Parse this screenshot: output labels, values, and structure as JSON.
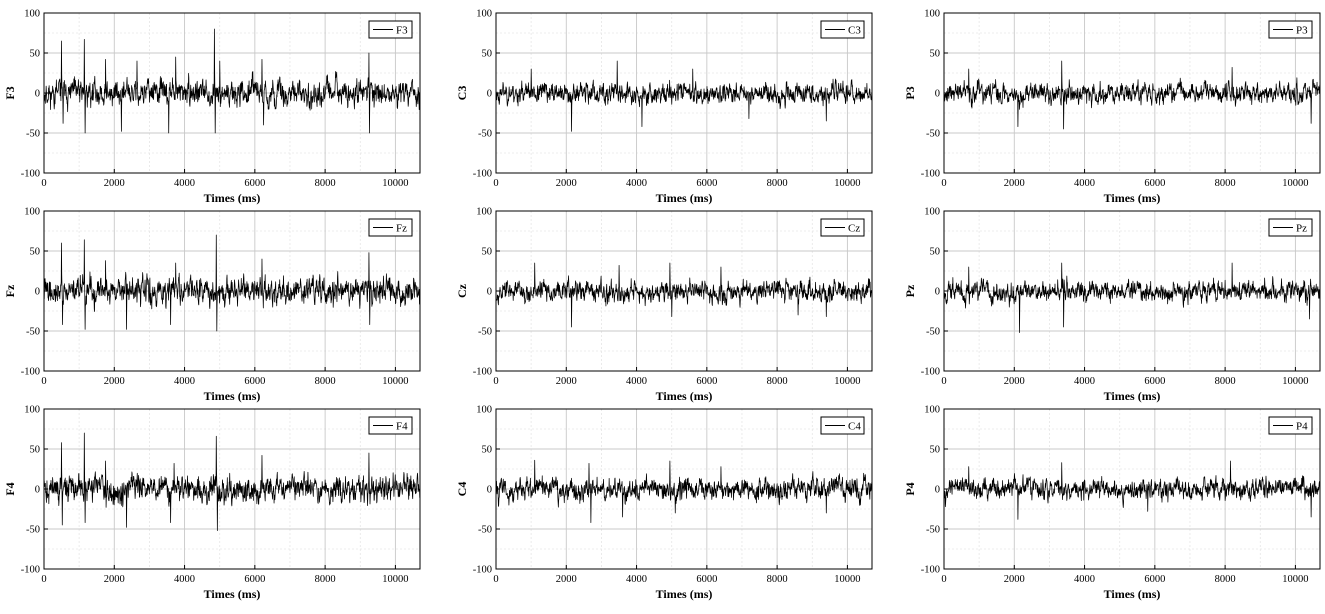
{
  "chart_data": [
    {
      "type": "line",
      "ylabel": "F3",
      "legend": "F3",
      "xlabel": "Times (ms)",
      "xlim": [
        0,
        10700
      ],
      "ylim": [
        -100,
        100
      ],
      "xticks": [
        0,
        2000,
        4000,
        6000,
        8000,
        10000
      ],
      "yticks": [
        -100,
        -50,
        0,
        50,
        100
      ],
      "legend_position": "top-right",
      "grid": true,
      "signal": {
        "amplitude": 13,
        "seed": 11,
        "spikes": [
          [
            500,
            65
          ],
          [
            540,
            -38
          ],
          [
            1150,
            67
          ],
          [
            1170,
            -50
          ],
          [
            1750,
            42
          ],
          [
            2200,
            -48
          ],
          [
            2650,
            40
          ],
          [
            3550,
            -50
          ],
          [
            3750,
            45
          ],
          [
            4850,
            80
          ],
          [
            4870,
            -50
          ],
          [
            5000,
            40
          ],
          [
            6200,
            42
          ],
          [
            6250,
            -40
          ],
          [
            9250,
            50
          ],
          [
            9260,
            -50
          ]
        ]
      }
    },
    {
      "type": "line",
      "ylabel": "C3",
      "legend": "C3",
      "xlabel": "Times (ms)",
      "xlim": [
        0,
        10700
      ],
      "ylim": [
        -100,
        100
      ],
      "xticks": [
        0,
        2000,
        4000,
        6000,
        8000,
        10000
      ],
      "yticks": [
        -100,
        -50,
        0,
        50,
        100
      ],
      "legend_position": "top-right",
      "grid": true,
      "signal": {
        "amplitude": 10,
        "seed": 23,
        "spikes": [
          [
            2150,
            -48
          ],
          [
            3450,
            40
          ],
          [
            4150,
            -42
          ],
          [
            1000,
            30
          ],
          [
            5600,
            30
          ],
          [
            7200,
            -32
          ],
          [
            9400,
            -35
          ]
        ]
      }
    },
    {
      "type": "line",
      "ylabel": "P3",
      "legend": "P3",
      "xlabel": "Times (ms)",
      "xlim": [
        0,
        10700
      ],
      "ylim": [
        -100,
        100
      ],
      "xticks": [
        0,
        2000,
        4000,
        6000,
        8000,
        10000
      ],
      "yticks": [
        -100,
        -50,
        0,
        50,
        100
      ],
      "legend_position": "top-right",
      "grid": true,
      "signal": {
        "amplitude": 10,
        "seed": 37,
        "spikes": [
          [
            2100,
            -42
          ],
          [
            3350,
            40
          ],
          [
            3400,
            -45
          ],
          [
            8200,
            32
          ],
          [
            10450,
            -38
          ],
          [
            700,
            30
          ]
        ]
      }
    },
    {
      "type": "line",
      "ylabel": "Fz",
      "legend": "Fz",
      "xlabel": "Times (ms)",
      "xlim": [
        0,
        10700
      ],
      "ylim": [
        -100,
        100
      ],
      "xticks": [
        0,
        2000,
        4000,
        6000,
        8000,
        10000
      ],
      "yticks": [
        -100,
        -50,
        0,
        50,
        100
      ],
      "legend_position": "top-right",
      "grid": true,
      "signal": {
        "amplitude": 13,
        "seed": 41,
        "spikes": [
          [
            500,
            60
          ],
          [
            530,
            -42
          ],
          [
            1150,
            64
          ],
          [
            1170,
            -48
          ],
          [
            1750,
            38
          ],
          [
            2350,
            -48
          ],
          [
            3750,
            35
          ],
          [
            3600,
            -42
          ],
          [
            4900,
            70
          ],
          [
            4920,
            -50
          ],
          [
            6200,
            40
          ],
          [
            9250,
            48
          ],
          [
            9270,
            -42
          ]
        ]
      }
    },
    {
      "type": "line",
      "ylabel": "Cz",
      "legend": "Cz",
      "xlabel": "Times (ms)",
      "xlim": [
        0,
        10700
      ],
      "ylim": [
        -100,
        100
      ],
      "xticks": [
        0,
        2000,
        4000,
        6000,
        8000,
        10000
      ],
      "yticks": [
        -100,
        -50,
        0,
        50,
        100
      ],
      "legend_position": "top-right",
      "grid": true,
      "signal": {
        "amplitude": 10,
        "seed": 53,
        "spikes": [
          [
            2150,
            -45
          ],
          [
            1100,
            35
          ],
          [
            3500,
            32
          ],
          [
            4950,
            35
          ],
          [
            5000,
            -32
          ],
          [
            6400,
            30
          ],
          [
            8600,
            -30
          ],
          [
            9400,
            -32
          ]
        ]
      }
    },
    {
      "type": "line",
      "ylabel": "Pz",
      "legend": "Pz",
      "xlabel": "Times (ms)",
      "xlim": [
        0,
        10700
      ],
      "ylim": [
        -100,
        100
      ],
      "xticks": [
        0,
        2000,
        4000,
        6000,
        8000,
        10000
      ],
      "yticks": [
        -100,
        -50,
        0,
        50,
        100
      ],
      "legend_position": "top-right",
      "grid": true,
      "signal": {
        "amplitude": 10,
        "seed": 67,
        "spikes": [
          [
            2150,
            -52
          ],
          [
            3350,
            35
          ],
          [
            3400,
            -45
          ],
          [
            8200,
            35
          ],
          [
            10400,
            -35
          ],
          [
            700,
            30
          ]
        ]
      }
    },
    {
      "type": "line",
      "ylabel": "F4",
      "legend": "F4",
      "xlabel": "Times (ms)",
      "xlim": [
        0,
        10700
      ],
      "ylim": [
        -100,
        100
      ],
      "xticks": [
        0,
        2000,
        4000,
        6000,
        8000,
        10000
      ],
      "yticks": [
        -100,
        -50,
        0,
        50,
        100
      ],
      "legend_position": "top-right",
      "grid": true,
      "signal": {
        "amplitude": 13,
        "seed": 71,
        "spikes": [
          [
            500,
            58
          ],
          [
            520,
            -45
          ],
          [
            1150,
            70
          ],
          [
            1170,
            -42
          ],
          [
            1750,
            35
          ],
          [
            2350,
            -48
          ],
          [
            3700,
            32
          ],
          [
            3600,
            -42
          ],
          [
            4900,
            66
          ],
          [
            4930,
            -52
          ],
          [
            6200,
            42
          ],
          [
            9250,
            45
          ]
        ]
      }
    },
    {
      "type": "line",
      "ylabel": "C4",
      "legend": "C4",
      "xlabel": "Times (ms)",
      "xlim": [
        0,
        10700
      ],
      "ylim": [
        -100,
        100
      ],
      "xticks": [
        0,
        2000,
        4000,
        6000,
        8000,
        10000
      ],
      "yticks": [
        -100,
        -50,
        0,
        50,
        100
      ],
      "legend_position": "top-right",
      "grid": true,
      "signal": {
        "amplitude": 11,
        "seed": 83,
        "spikes": [
          [
            2700,
            -42
          ],
          [
            2650,
            32
          ],
          [
            1100,
            36
          ],
          [
            3600,
            -35
          ],
          [
            4950,
            35
          ],
          [
            5100,
            -30
          ],
          [
            6400,
            28
          ],
          [
            9400,
            -30
          ]
        ]
      }
    },
    {
      "type": "line",
      "ylabel": "P4",
      "legend": "P4",
      "xlabel": "Times (ms)",
      "xlim": [
        0,
        10700
      ],
      "ylim": [
        -100,
        100
      ],
      "xticks": [
        0,
        2000,
        4000,
        6000,
        8000,
        10000
      ],
      "yticks": [
        -100,
        -50,
        0,
        50,
        100
      ],
      "legend_position": "top-right",
      "grid": true,
      "signal": {
        "amplitude": 10,
        "seed": 97,
        "spikes": [
          [
            2100,
            -38
          ],
          [
            3350,
            33
          ],
          [
            8150,
            35
          ],
          [
            10450,
            -35
          ],
          [
            700,
            28
          ],
          [
            5800,
            -28
          ]
        ]
      }
    }
  ]
}
